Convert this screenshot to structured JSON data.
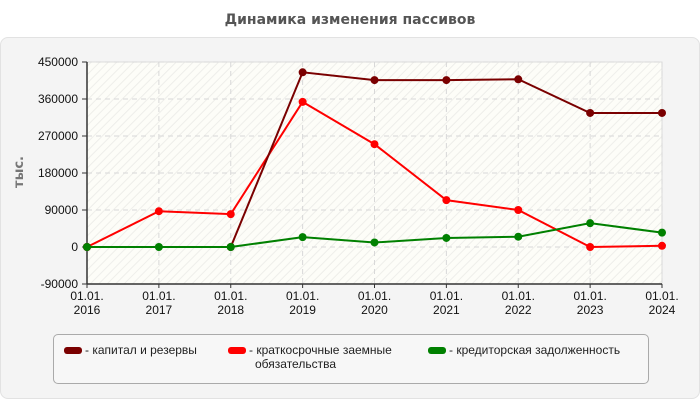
{
  "title": "Динамика изменения пассивов",
  "chart_data": {
    "type": "line",
    "title": "Динамика изменения пассивов",
    "xlabel": "",
    "ylabel": "тыс.",
    "ylim": [
      -90000,
      450000
    ],
    "yticks": [
      450000,
      360000,
      270000,
      180000,
      90000,
      0,
      -90000
    ],
    "categories": [
      "01.01.\n2016",
      "01.01.\n2017",
      "01.01.\n2018",
      "01.01.\n2019",
      "01.01.\n2020",
      "01.01.\n2021",
      "01.01.\n2022",
      "01.01.\n2023",
      "01.01.\n2024"
    ],
    "grid": true,
    "legend_position": "bottom",
    "series": [
      {
        "name": "капитал и резервы",
        "color": "#7a0000",
        "values": [
          0,
          null,
          0,
          425000,
          406000,
          406000,
          408000,
          326000,
          326000
        ]
      },
      {
        "name": "краткосрочные заемные обязательства",
        "color": "#ff0000",
        "values": [
          0,
          87000,
          80000,
          353000,
          250000,
          114000,
          90000,
          0,
          3000
        ]
      },
      {
        "name": "кредиторская задолженность",
        "color": "#008000",
        "values": [
          0,
          0,
          0,
          24000,
          11000,
          22000,
          25000,
          58000,
          35000
        ]
      }
    ]
  },
  "legend": {
    "items": [
      {
        "label": "- капитал и резервы",
        "color": "#7a0000"
      },
      {
        "label": "- краткосрочные заемные",
        "label2": "обязательства",
        "color": "#ff0000"
      },
      {
        "label": "- кредиторская задолженность",
        "color": "#008000"
      }
    ]
  }
}
